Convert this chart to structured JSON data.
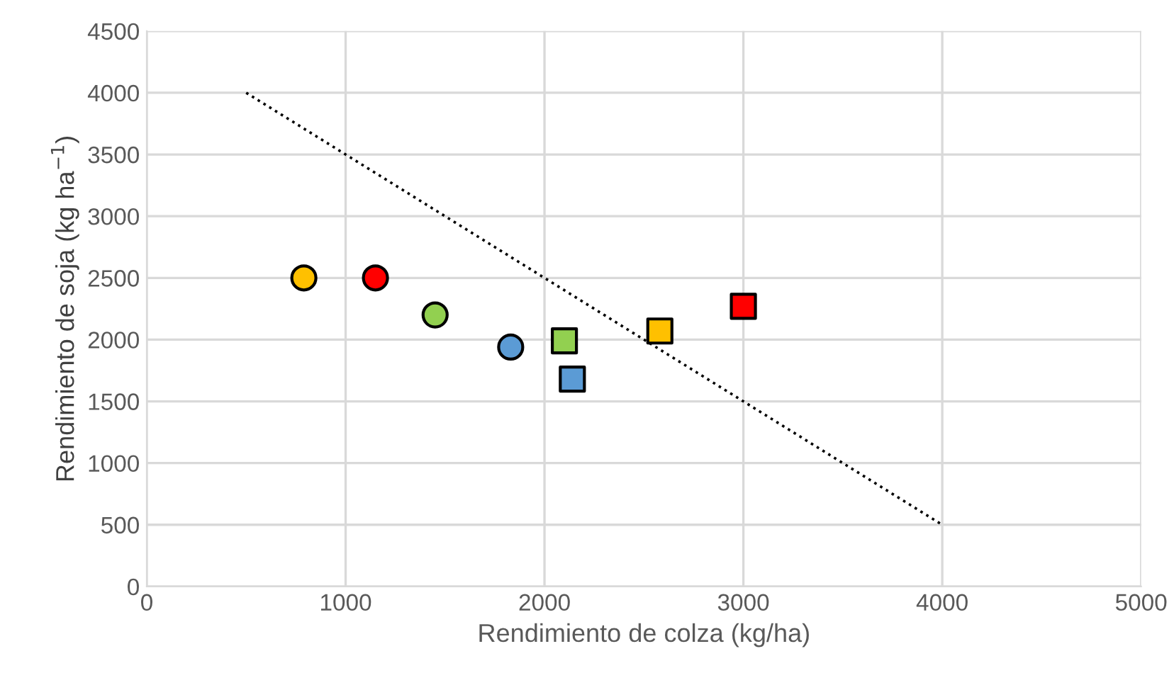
{
  "chart_data": {
    "type": "scatter",
    "xlabel": "Rendimiento de colza (kg/ha)",
    "ylabel": "Rendimiento de soja (kg ha$^{−1}$)",
    "xlim": [
      0,
      5000
    ],
    "xticks": [
      0,
      1000,
      2000,
      3000,
      4000,
      5000
    ],
    "ylim": [
      0,
      4500
    ],
    "yticks": [
      0,
      500,
      1000,
      1500,
      2000,
      2500,
      3000,
      3500,
      4000,
      4500
    ],
    "grid": true,
    "series": [
      {
        "color": "#ffc000",
        "marker": "circle",
        "x": [
          790
        ],
        "values": [
          2500
        ]
      },
      {
        "color": "#ff0000",
        "marker": "circle",
        "x": [
          1150
        ],
        "values": [
          2500
        ]
      },
      {
        "color": "#92d050",
        "marker": "circle",
        "x": [
          1450
        ],
        "values": [
          2200
        ]
      },
      {
        "color": "#5b9bd5",
        "marker": "circle",
        "x": [
          1830
        ],
        "values": [
          1940
        ]
      },
      {
        "color": "#92d050",
        "marker": "square",
        "x": [
          2100
        ],
        "values": [
          1990
        ]
      },
      {
        "color": "#5b9bd5",
        "marker": "square",
        "x": [
          2140
        ],
        "values": [
          1680
        ]
      },
      {
        "color": "#ffc000",
        "marker": "square",
        "x": [
          2580
        ],
        "values": [
          2070
        ]
      },
      {
        "color": "#ff0000",
        "marker": "square",
        "x": [
          3000
        ],
        "values": [
          2270
        ]
      },
      {
        "type": "line",
        "color": "#000000",
        "line_style": "dotted",
        "marker": "none",
        "x": [
          500,
          4000
        ],
        "values": [
          4000,
          500
        ]
      }
    ]
  }
}
